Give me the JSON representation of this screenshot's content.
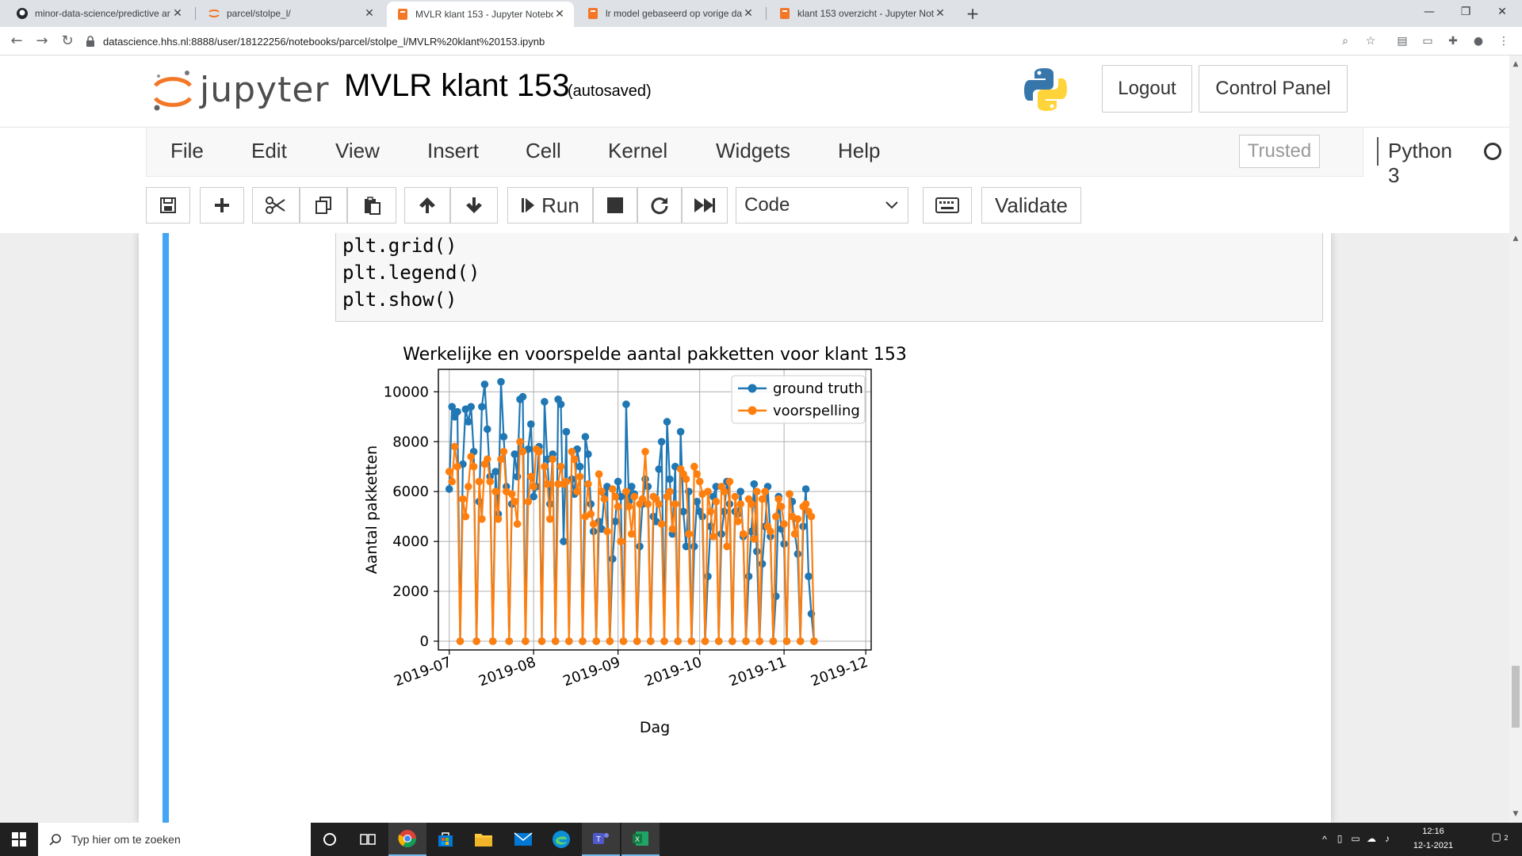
{
  "browser": {
    "tabs": [
      {
        "title": "minor-data-science/predictive ar",
        "favicon": "github-icon"
      },
      {
        "title": "parcel/stolpe_l/",
        "favicon": "jupyter-icon"
      },
      {
        "title": "MVLR klant 153 - Jupyter Notebo",
        "favicon": "jupyter-notebook-icon",
        "active": true
      },
      {
        "title": "lr model gebaseerd op vorige da",
        "favicon": "jupyter-notebook-icon"
      },
      {
        "title": "klant 153 overzicht - Jupyter Not",
        "favicon": "jupyter-notebook-icon"
      }
    ],
    "new_tab": "+",
    "url": "datascience.hhs.nl:8888/user/18122256/notebooks/parcel/stolpe_l/MVLR%20klant%20153.ipynb"
  },
  "jupyter": {
    "logo_text": "jupyter",
    "notebook_title": "MVLR klant 153",
    "autosave_status": "(autosaved)",
    "logout_label": "Logout",
    "control_panel_label": "Control Panel",
    "menu": [
      "File",
      "Edit",
      "View",
      "Insert",
      "Cell",
      "Kernel",
      "Widgets",
      "Help"
    ],
    "trusted_label": "Trusted",
    "kernel_name": "Python 3",
    "toolbar": {
      "run_label": "Run",
      "cell_type": "Code",
      "validate_label": "Validate"
    }
  },
  "code_cell": {
    "lines": [
      "plt.grid()",
      "plt.legend()",
      "plt.show()"
    ]
  },
  "chart_data": {
    "type": "line",
    "title": "Werkelijke en voorspelde aantal pakketten voor klant 153",
    "xlabel": "Dag",
    "ylabel": "Aantal pakketten",
    "x_tick_labels": [
      "2019-07",
      "2019-08",
      "2019-09",
      "2019-10",
      "2019-11",
      "2019-12"
    ],
    "y_ticks": [
      0,
      2000,
      4000,
      6000,
      8000,
      10000
    ],
    "xlim": [
      "2019-06-27",
      "2019-12-03"
    ],
    "ylim": [
      -350,
      10900
    ],
    "grid": true,
    "legend_position": "top-right",
    "x_start": "2019-07-01",
    "series": [
      {
        "name": "ground truth",
        "color": "#1f77b4",
        "values": [
          6100,
          9400,
          9000,
          9200,
          0,
          7100,
          9300,
          8800,
          9400,
          7600,
          0,
          5600,
          9400,
          10300,
          8500,
          6600,
          0,
          6800,
          5100,
          10400,
          8200,
          6200,
          0,
          5500,
          7500,
          6600,
          9700,
          9800,
          0,
          7700,
          8700,
          5800,
          6200,
          7800,
          0,
          9600,
          7300,
          5500,
          7500,
          0,
          9700,
          9500,
          4000,
          8400,
          0,
          6500,
          5900,
          7700,
          7000,
          0,
          8200,
          7500,
          5500,
          4400,
          0,
          4800,
          4500,
          5900,
          6200,
          0,
          3300,
          4800,
          6400,
          5800,
          0,
          9500,
          5600,
          6200,
          5900,
          0,
          3800,
          5500,
          6500,
          6200,
          0,
          5000,
          4800,
          6900,
          8000,
          0,
          8800,
          6500,
          4300,
          7000,
          0,
          8400,
          5200,
          3800,
          6000,
          0,
          3800,
          5600,
          5200,
          5000,
          0,
          2600,
          4600,
          5800,
          6200,
          0,
          4300,
          5200,
          6400,
          5500,
          0,
          5200,
          5100,
          6000,
          4200,
          0,
          2600,
          4400,
          6300,
          3600,
          0,
          3100,
          4600,
          6200,
          4200,
          0,
          1800,
          5800,
          4500,
          3900,
          0,
          5900,
          5600,
          4300,
          3500,
          0,
          4600,
          6100,
          2600,
          1100,
          0
        ]
      },
      {
        "name": "voorspelling",
        "color": "#ff7f0e",
        "values": [
          6800,
          6400,
          7800,
          7000,
          0,
          5700,
          5000,
          6200,
          7400,
          7000,
          0,
          6400,
          4900,
          7100,
          7300,
          6400,
          0,
          6000,
          4900,
          7300,
          7600,
          6000,
          0,
          5900,
          5600,
          4700,
          8000,
          7600,
          0,
          5600,
          6600,
          6200,
          7700,
          7600,
          0,
          7000,
          6300,
          4900,
          7300,
          0,
          6300,
          7000,
          6300,
          6400,
          0,
          7600,
          7300,
          6000,
          6600,
          0,
          5000,
          6300,
          5100,
          4700,
          0,
          6700,
          6000,
          5700,
          4400,
          0,
          6100,
          5800,
          5400,
          4000,
          0,
          6000,
          5400,
          4300,
          5800,
          0,
          5500,
          5700,
          7600,
          5500,
          0,
          5800,
          5700,
          5500,
          4700,
          0,
          5800,
          6000,
          4500,
          5500,
          0,
          6900,
          6700,
          6500,
          4300,
          0,
          7000,
          6700,
          6400,
          5900,
          0,
          6000,
          5200,
          4200,
          5600,
          0,
          6200,
          6000,
          3800,
          6400,
          0,
          5800,
          4800,
          5500,
          4300,
          0,
          5700,
          5500,
          4100,
          6000,
          0,
          5700,
          6000,
          4600,
          4400,
          0,
          5000,
          5700,
          5400,
          4700,
          0,
          5900,
          5000,
          4300,
          4900,
          0,
          5400,
          5500,
          5200,
          5000,
          0
        ]
      }
    ]
  },
  "taskbar": {
    "search_placeholder": "Typ hier om te zoeken",
    "time": "12:16",
    "date": "12-1-2021",
    "notification_count": "2"
  }
}
